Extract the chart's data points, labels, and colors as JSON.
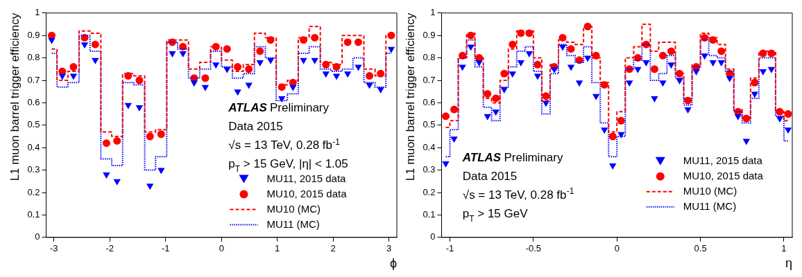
{
  "chart_data": [
    {
      "type": "scatter",
      "xlabel": "ϕ",
      "ylabel": "L1 muon barrel trigger efficiency",
      "xlim": [
        -3.14,
        3.14
      ],
      "xticks": [
        -3,
        -2,
        -1,
        0,
        1,
        2,
        3
      ],
      "ylim": [
        0,
        1
      ],
      "yticks": [
        0,
        0.1,
        0.2,
        0.3,
        0.4,
        0.5,
        0.6,
        0.7,
        0.8,
        0.9,
        1
      ],
      "legend": "bottom right",
      "annotations": [
        "ATLAS Preliminary",
        "Data 2015",
        "√s = 13 TeV, 0.28 fb$^{-1}$",
        "p$_{T}$ > 15 GeV, |η| < 1.05"
      ],
      "x": [
        -3.04,
        -2.85,
        -2.65,
        -2.45,
        -2.26,
        -2.06,
        -1.87,
        -1.67,
        -1.47,
        -1.28,
        -1.08,
        -0.88,
        -0.69,
        -0.49,
        -0.29,
        -0.1,
        0.1,
        0.29,
        0.49,
        0.69,
        0.88,
        1.08,
        1.28,
        1.47,
        1.67,
        1.87,
        2.06,
        2.26,
        2.45,
        2.65,
        2.85,
        3.04
      ],
      "series": [
        {
          "name": "MU11, 2015 data",
          "marker": "triangle",
          "color": "#0000ff",
          "values": [
            0.88,
            0.72,
            0.72,
            0.86,
            0.79,
            0.28,
            0.25,
            0.59,
            0.58,
            0.23,
            0.3,
            0.82,
            0.82,
            0.69,
            0.67,
            0.77,
            0.75,
            0.65,
            0.68,
            0.78,
            0.79,
            0.62,
            0.67,
            0.79,
            0.79,
            0.73,
            0.72,
            0.73,
            0.76,
            0.68,
            0.66,
            0.84
          ]
        },
        {
          "name": "MU10, 2015 data",
          "marker": "circle",
          "color": "#ff0000",
          "values": [
            0.9,
            0.74,
            0.76,
            0.89,
            0.86,
            0.42,
            0.43,
            0.72,
            0.7,
            0.45,
            0.46,
            0.87,
            0.85,
            0.71,
            0.71,
            0.85,
            0.84,
            0.76,
            0.75,
            0.83,
            0.88,
            0.67,
            0.69,
            0.88,
            0.89,
            0.77,
            0.76,
            0.87,
            0.87,
            0.72,
            0.73,
            0.9
          ]
        },
        {
          "name": "MU10 (MC)",
          "type": "step",
          "line_style": "dashed",
          "color": "#ff0000",
          "values": [
            0.84,
            0.7,
            0.74,
            0.92,
            0.91,
            0.47,
            0.45,
            0.73,
            0.72,
            0.47,
            0.48,
            0.88,
            0.88,
            0.75,
            0.78,
            0.85,
            0.79,
            0.74,
            0.77,
            0.91,
            0.89,
            0.68,
            0.7,
            0.89,
            0.94,
            0.78,
            0.77,
            0.9,
            0.9,
            0.75,
            0.72,
            0.9
          ]
        },
        {
          "name": "MU11 (MC)",
          "type": "step",
          "line_style": "dotted",
          "color": "#0000ff",
          "values": [
            0.82,
            0.67,
            0.69,
            0.9,
            0.83,
            0.35,
            0.32,
            0.69,
            0.68,
            0.3,
            0.36,
            0.87,
            0.84,
            0.71,
            0.75,
            0.83,
            0.76,
            0.71,
            0.73,
            0.85,
            0.8,
            0.61,
            0.64,
            0.82,
            0.85,
            0.75,
            0.74,
            0.75,
            0.8,
            0.69,
            0.67,
            0.82
          ]
        }
      ]
    },
    {
      "type": "scatter",
      "xlabel": "η",
      "ylabel": "L1 muon barrel trigger efficiency",
      "xlim": [
        -1.05,
        1.05
      ],
      "xticks": [
        -1,
        -0.5,
        0,
        0.5,
        1
      ],
      "ylim": [
        0,
        1
      ],
      "yticks": [
        0,
        0.1,
        0.2,
        0.3,
        0.4,
        0.5,
        0.6,
        0.7,
        0.8,
        0.9,
        1
      ],
      "legend": "bottom right",
      "annotations": [
        "ATLAS Preliminary",
        "Data 2015",
        "√s = 13 TeV, 0.28 fb$^{-1}$",
        "p$_{T}$ > 15 GeV"
      ],
      "x": [
        -1.025,
        -0.975,
        -0.925,
        -0.875,
        -0.825,
        -0.775,
        -0.725,
        -0.675,
        -0.625,
        -0.575,
        -0.525,
        -0.475,
        -0.425,
        -0.375,
        -0.325,
        -0.275,
        -0.225,
        -0.175,
        -0.125,
        -0.075,
        -0.025,
        0.025,
        0.075,
        0.125,
        0.175,
        0.225,
        0.275,
        0.325,
        0.375,
        0.425,
        0.475,
        0.525,
        0.575,
        0.625,
        0.675,
        0.725,
        0.775,
        0.825,
        0.875,
        0.925,
        0.975,
        1.025
      ],
      "series": [
        {
          "name": "MU11, 2015 data",
          "marker": "triangle",
          "color": "#0000ff",
          "values": [
            0.33,
            0.44,
            0.76,
            0.85,
            0.78,
            0.54,
            0.56,
            0.66,
            0.73,
            0.78,
            0.82,
            0.72,
            0.6,
            0.75,
            0.85,
            0.76,
            0.69,
            0.8,
            0.63,
            0.48,
            0.32,
            0.46,
            0.69,
            0.75,
            0.78,
            0.62,
            0.69,
            0.77,
            0.7,
            0.57,
            0.74,
            0.81,
            0.78,
            0.78,
            0.71,
            0.54,
            0.43,
            0.64,
            0.74,
            0.75,
            0.53,
            0.48
          ]
        },
        {
          "name": "MU10, 2015 data",
          "marker": "circle",
          "color": "#ff0000",
          "values": [
            0.54,
            0.57,
            0.81,
            0.9,
            0.8,
            0.64,
            0.62,
            0.73,
            0.86,
            0.91,
            0.91,
            0.77,
            0.63,
            0.76,
            0.89,
            0.84,
            0.79,
            0.94,
            0.81,
            0.68,
            0.45,
            0.52,
            0.75,
            0.8,
            0.86,
            0.75,
            0.81,
            0.83,
            0.73,
            0.61,
            0.76,
            0.89,
            0.88,
            0.83,
            0.73,
            0.56,
            0.53,
            0.69,
            0.82,
            0.82,
            0.56,
            0.55
          ]
        },
        {
          "name": "MU10 (MC)",
          "type": "step",
          "line_style": "dashed",
          "color": "#ff0000",
          "values": [
            0.49,
            0.52,
            0.8,
            0.91,
            0.8,
            0.62,
            0.6,
            0.7,
            0.84,
            0.92,
            0.92,
            0.8,
            0.61,
            0.77,
            0.88,
            0.87,
            0.86,
            0.94,
            0.8,
            0.69,
            0.47,
            0.56,
            0.8,
            0.85,
            0.95,
            0.83,
            0.87,
            0.87,
            0.73,
            0.62,
            0.77,
            0.91,
            0.89,
            0.86,
            0.75,
            0.57,
            0.53,
            0.71,
            0.83,
            0.83,
            0.56,
            0.52
          ]
        },
        {
          "name": "MU11 (MC)",
          "type": "step",
          "line_style": "dotted",
          "color": "#0000ff",
          "values": [
            0.36,
            0.48,
            0.8,
            0.88,
            0.76,
            0.58,
            0.52,
            0.67,
            0.76,
            0.83,
            0.85,
            0.74,
            0.55,
            0.73,
            0.86,
            0.81,
            0.78,
            0.85,
            0.69,
            0.51,
            0.36,
            0.45,
            0.75,
            0.79,
            0.86,
            0.7,
            0.73,
            0.81,
            0.71,
            0.59,
            0.76,
            0.88,
            0.81,
            0.8,
            0.74,
            0.56,
            0.51,
            0.62,
            0.8,
            0.8,
            0.54,
            0.43
          ]
        }
      ]
    }
  ]
}
